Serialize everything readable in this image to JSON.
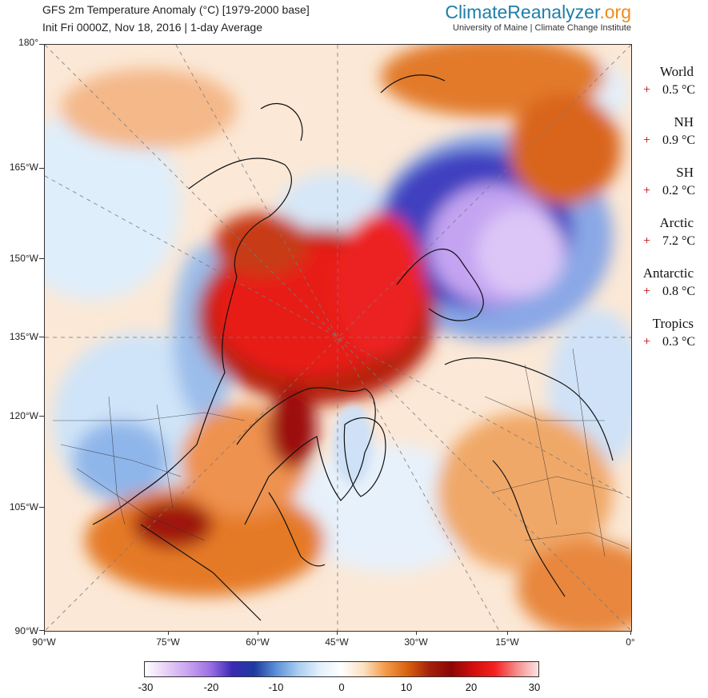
{
  "header": {
    "title": "GFS 2m Temperature Anomaly (°C) [1979-2000 base]",
    "subtitle": "Init Fri 0000Z, Nov 18, 2016 | 1-day Average",
    "brand_part1": "ClimateReanalyzer",
    "brand_part2": ".org",
    "brand_sub": "University of Maine | Climate Change Institute"
  },
  "map": {
    "left_axis_labels": [
      "180°",
      "165°W",
      "150°W",
      "135°W",
      "120°W",
      "105°W",
      "90°W"
    ],
    "bottom_axis_labels": [
      "90°W",
      "75°W",
      "60°W",
      "45°W",
      "30°W",
      "15°W",
      "0°"
    ],
    "icons": [
      "polar-projection-map"
    ]
  },
  "stats": [
    {
      "name": "World",
      "sign": "+",
      "value": "0.5 °C"
    },
    {
      "name": "NH",
      "sign": "+",
      "value": "0.9 °C"
    },
    {
      "name": "SH",
      "sign": "+",
      "value": "0.2 °C"
    },
    {
      "name": "Arctic",
      "sign": "+",
      "value": "7.2 °C"
    },
    {
      "name": "Antarctic",
      "sign": "+",
      "value": "0.8 °C"
    },
    {
      "name": "Tropics",
      "sign": "+",
      "value": "0.3 °C"
    }
  ],
  "colorbar": {
    "ticks": [
      "-30",
      "-20",
      "-10",
      "0",
      "10",
      "20",
      "30"
    ],
    "colors": [
      "#ffffff",
      "#e6cff5",
      "#c9a2f0",
      "#9b6fe3",
      "#3a2ab5",
      "#1e3a9e",
      "#5b8fd6",
      "#a9cdf0",
      "#e3f0fa",
      "#ffffff",
      "#fbe0c2",
      "#f39b4a",
      "#d9620f",
      "#a5210b",
      "#8c0606",
      "#d10d0d",
      "#f52020",
      "#f58a8a",
      "#fde3e3"
    ]
  }
}
